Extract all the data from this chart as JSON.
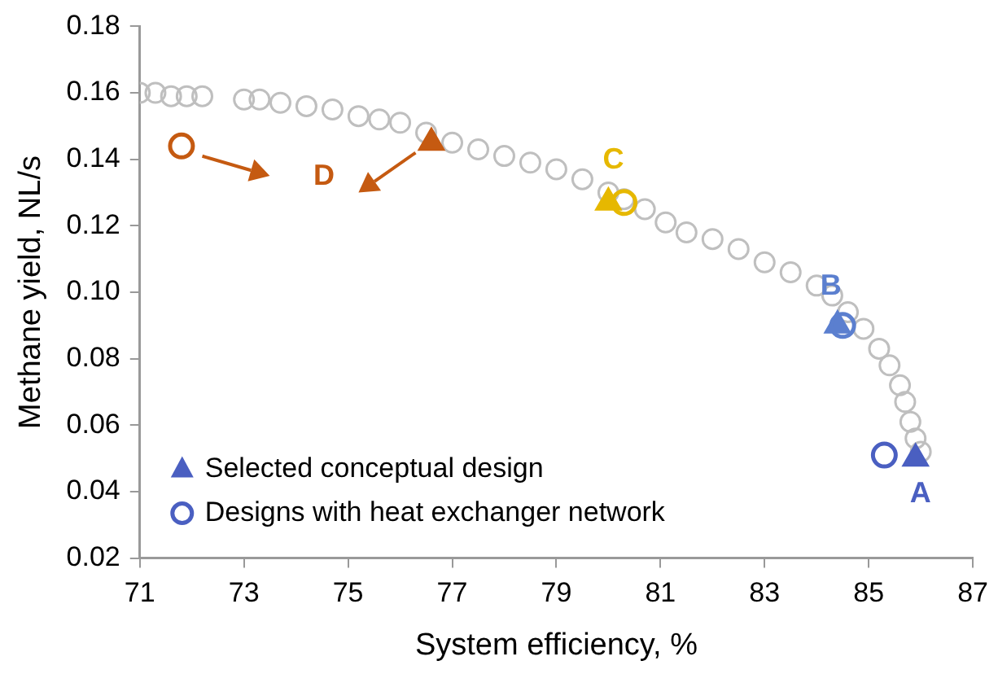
{
  "chart_data": {
    "type": "scatter",
    "xlabel": "System efficiency, %",
    "ylabel": "Methane yield, NL/s",
    "xlim": [
      71,
      87
    ],
    "xticks": [
      71,
      73,
      75,
      77,
      79,
      81,
      83,
      85,
      87
    ],
    "ylim": [
      0.02,
      0.18
    ],
    "yticks": [
      0.02,
      0.04,
      0.06,
      0.08,
      {
        "value": 0.1,
        "label": "0.10"
      },
      0.12,
      0.14,
      0.16,
      0.18
    ],
    "grid": false,
    "legend": "bottom left",
    "series": [
      {
        "marker": "circle",
        "color": "#bfbfbf",
        "x": [
          71.0,
          71.3,
          71.6,
          71.9,
          72.2,
          73.0,
          73.3,
          73.7,
          74.2,
          74.7,
          75.2,
          75.6,
          76.0,
          76.5,
          77.0,
          77.5,
          78.0,
          78.5,
          79.0,
          79.5,
          80.0,
          80.3,
          80.7,
          81.1,
          81.5,
          82.0,
          82.5,
          83.0,
          83.5,
          84.0,
          84.3,
          84.6,
          84.9,
          85.2,
          85.4,
          85.6,
          85.7,
          85.8,
          85.9,
          86.0
        ],
        "values": [
          0.16,
          0.16,
          0.159,
          0.159,
          0.159,
          0.158,
          0.158,
          0.157,
          0.156,
          0.155,
          0.153,
          0.152,
          0.151,
          0.148,
          0.145,
          0.143,
          0.141,
          0.139,
          0.137,
          0.134,
          0.13,
          0.128,
          0.125,
          0.121,
          0.118,
          0.116,
          0.113,
          0.109,
          0.106,
          0.102,
          0.099,
          0.094,
          0.089,
          0.083,
          0.078,
          0.072,
          0.067,
          0.061,
          0.056,
          0.052
        ]
      },
      {
        "name": "Selected conceptual design",
        "marker": "triangle",
        "colors": [
          "#4a5fc1",
          "#5b7fcf",
          "#e6b800",
          "#c55a11"
        ],
        "x": [
          85.9,
          84.4,
          80.0,
          76.6
        ],
        "values": [
          0.05,
          0.09,
          0.127,
          0.145
        ]
      },
      {
        "name": "Designs with heat exchanger network",
        "marker": "circle",
        "colors": [
          "#4a5fc1",
          "#5b7fcf",
          "#e6b800",
          "#c55a11"
        ],
        "x": [
          85.3,
          84.5,
          80.3,
          71.8
        ],
        "values": [
          0.051,
          0.09,
          0.127,
          0.144
        ]
      }
    ],
    "annotations": [
      "A",
      "B",
      "C",
      "D"
    ]
  }
}
